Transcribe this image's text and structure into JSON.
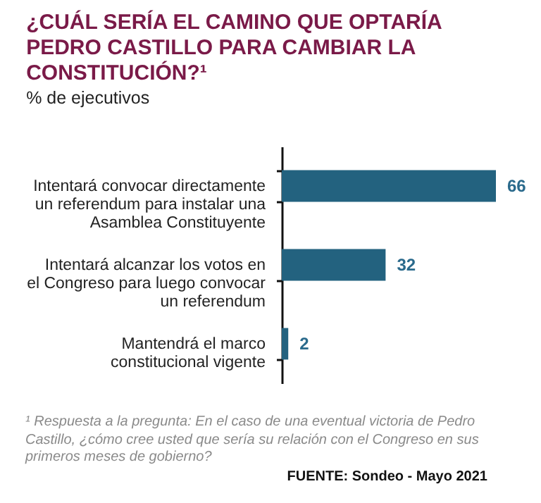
{
  "chart_data": {
    "type": "bar",
    "orientation": "horizontal",
    "title": "¿CUÁL SERÍA EL CAMINO QUE OPTARÍA PEDRO CASTILLO PARA CAMBIAR LA CONSTITUCIÓN?¹",
    "subtitle": "% de ejecutivos",
    "categories": [
      "Intentará convocar directamente un referendum para instalar una Asamblea Constituyente",
      "Intentará alcanzar los votos en el Congreso para luego convocar un referendum",
      "Mantendrá el marco constitucional vigente"
    ],
    "values": [
      66,
      32,
      2
    ],
    "color": "#23627f",
    "data_labels": true,
    "annotations": [
      "¹ Respuesta a la pregunta: En el caso de una eventual victoria de Pedro Castillo, ¿cómo cree usted que sería su relación con el Congreso en sus primeros meses de gobierno?",
      "FUENTE: Sondeo - Mayo 2021"
    ]
  }
}
